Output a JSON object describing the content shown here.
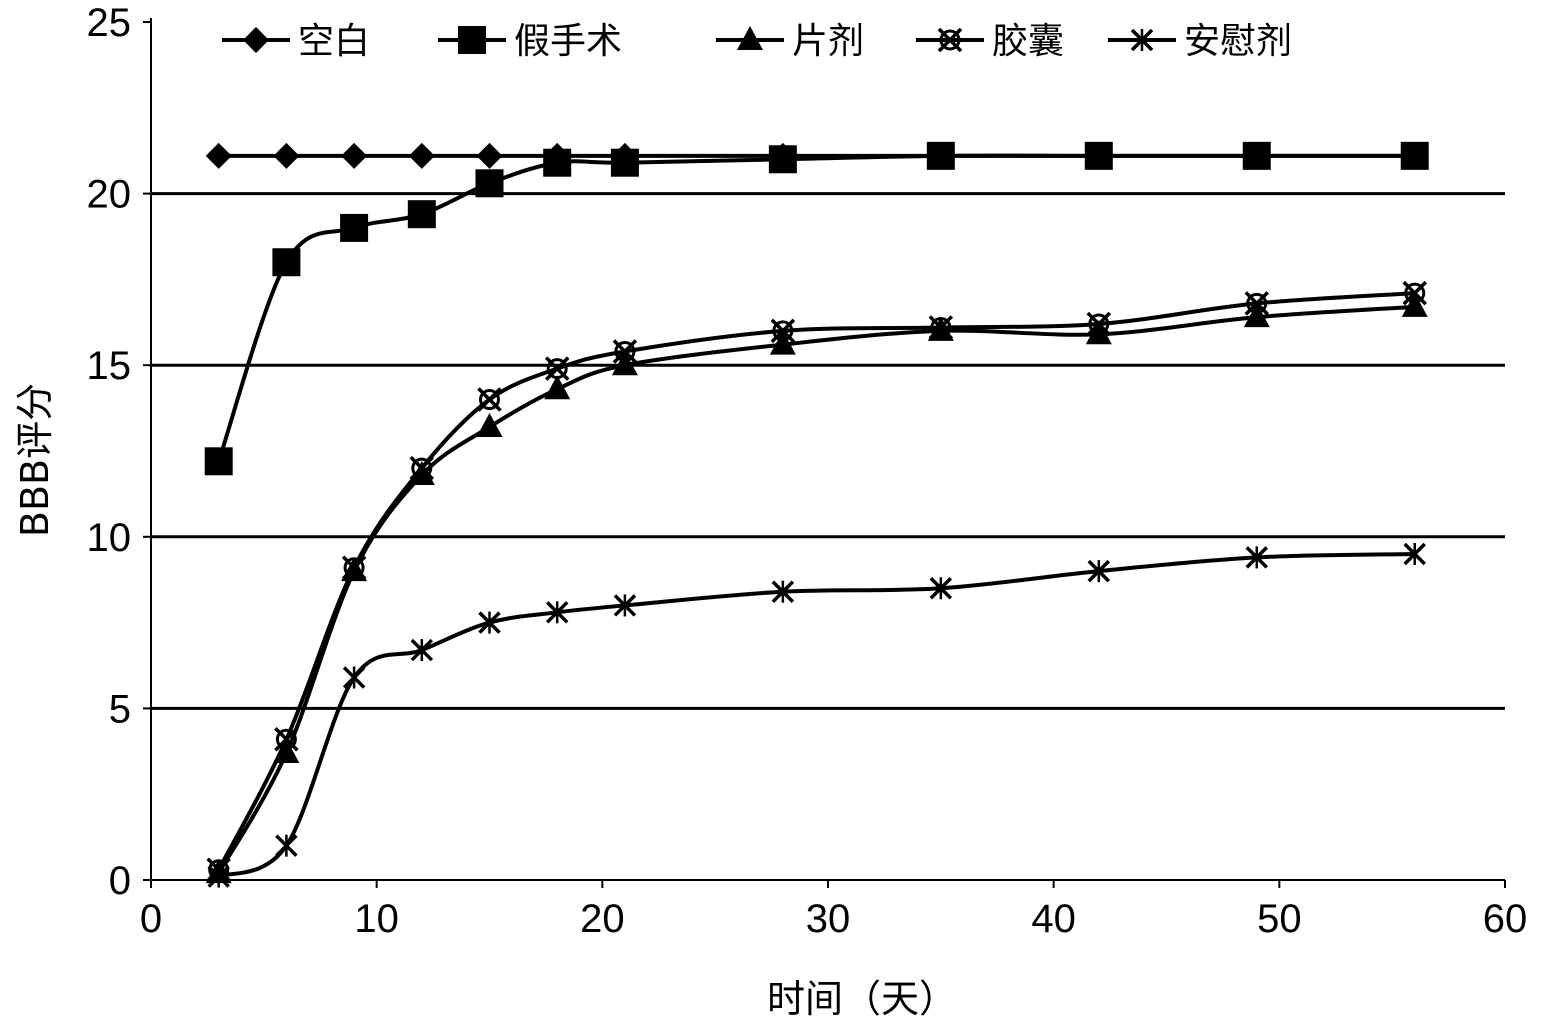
{
  "chart_data": {
    "type": "line",
    "title": "",
    "xlabel": "时间（天）",
    "ylabel": "BBB评分",
    "xlim": [
      0,
      60
    ],
    "ylim": [
      0,
      25
    ],
    "xticks": [
      0,
      10,
      20,
      30,
      40,
      50,
      60
    ],
    "yticks": [
      0,
      5,
      10,
      15,
      20,
      25
    ],
    "grid": "horizontal",
    "legend": "top",
    "x": [
      3,
      6,
      9,
      12,
      15,
      18,
      21,
      28,
      35,
      42,
      49,
      56
    ],
    "series": [
      {
        "name": "空白",
        "marker": "diamond",
        "values": [
          21.1,
          21.1,
          21.1,
          21.1,
          21.1,
          21.1,
          21.1,
          21.1,
          21.1,
          21.1,
          21.1,
          21.1
        ]
      },
      {
        "name": "假手术",
        "marker": "square",
        "values": [
          12.2,
          18.0,
          19.0,
          19.4,
          20.3,
          20.9,
          20.9,
          21.0,
          21.1,
          21.1,
          21.1,
          21.1
        ]
      },
      {
        "name": "片剂",
        "marker": "triangle",
        "values": [
          0.2,
          3.7,
          9.0,
          11.8,
          13.2,
          14.3,
          15.0,
          15.6,
          16.0,
          15.9,
          16.4,
          16.7
        ]
      },
      {
        "name": "胶囊",
        "marker": "cross-circle",
        "values": [
          0.3,
          4.1,
          9.1,
          12.0,
          14.0,
          14.9,
          15.4,
          16.0,
          16.1,
          16.2,
          16.8,
          17.1
        ]
      },
      {
        "name": "安慰剂",
        "marker": "asterisk",
        "values": [
          0.1,
          1.0,
          5.9,
          6.7,
          7.5,
          7.8,
          8.0,
          8.4,
          8.5,
          9.0,
          9.4,
          9.5
        ]
      }
    ]
  }
}
